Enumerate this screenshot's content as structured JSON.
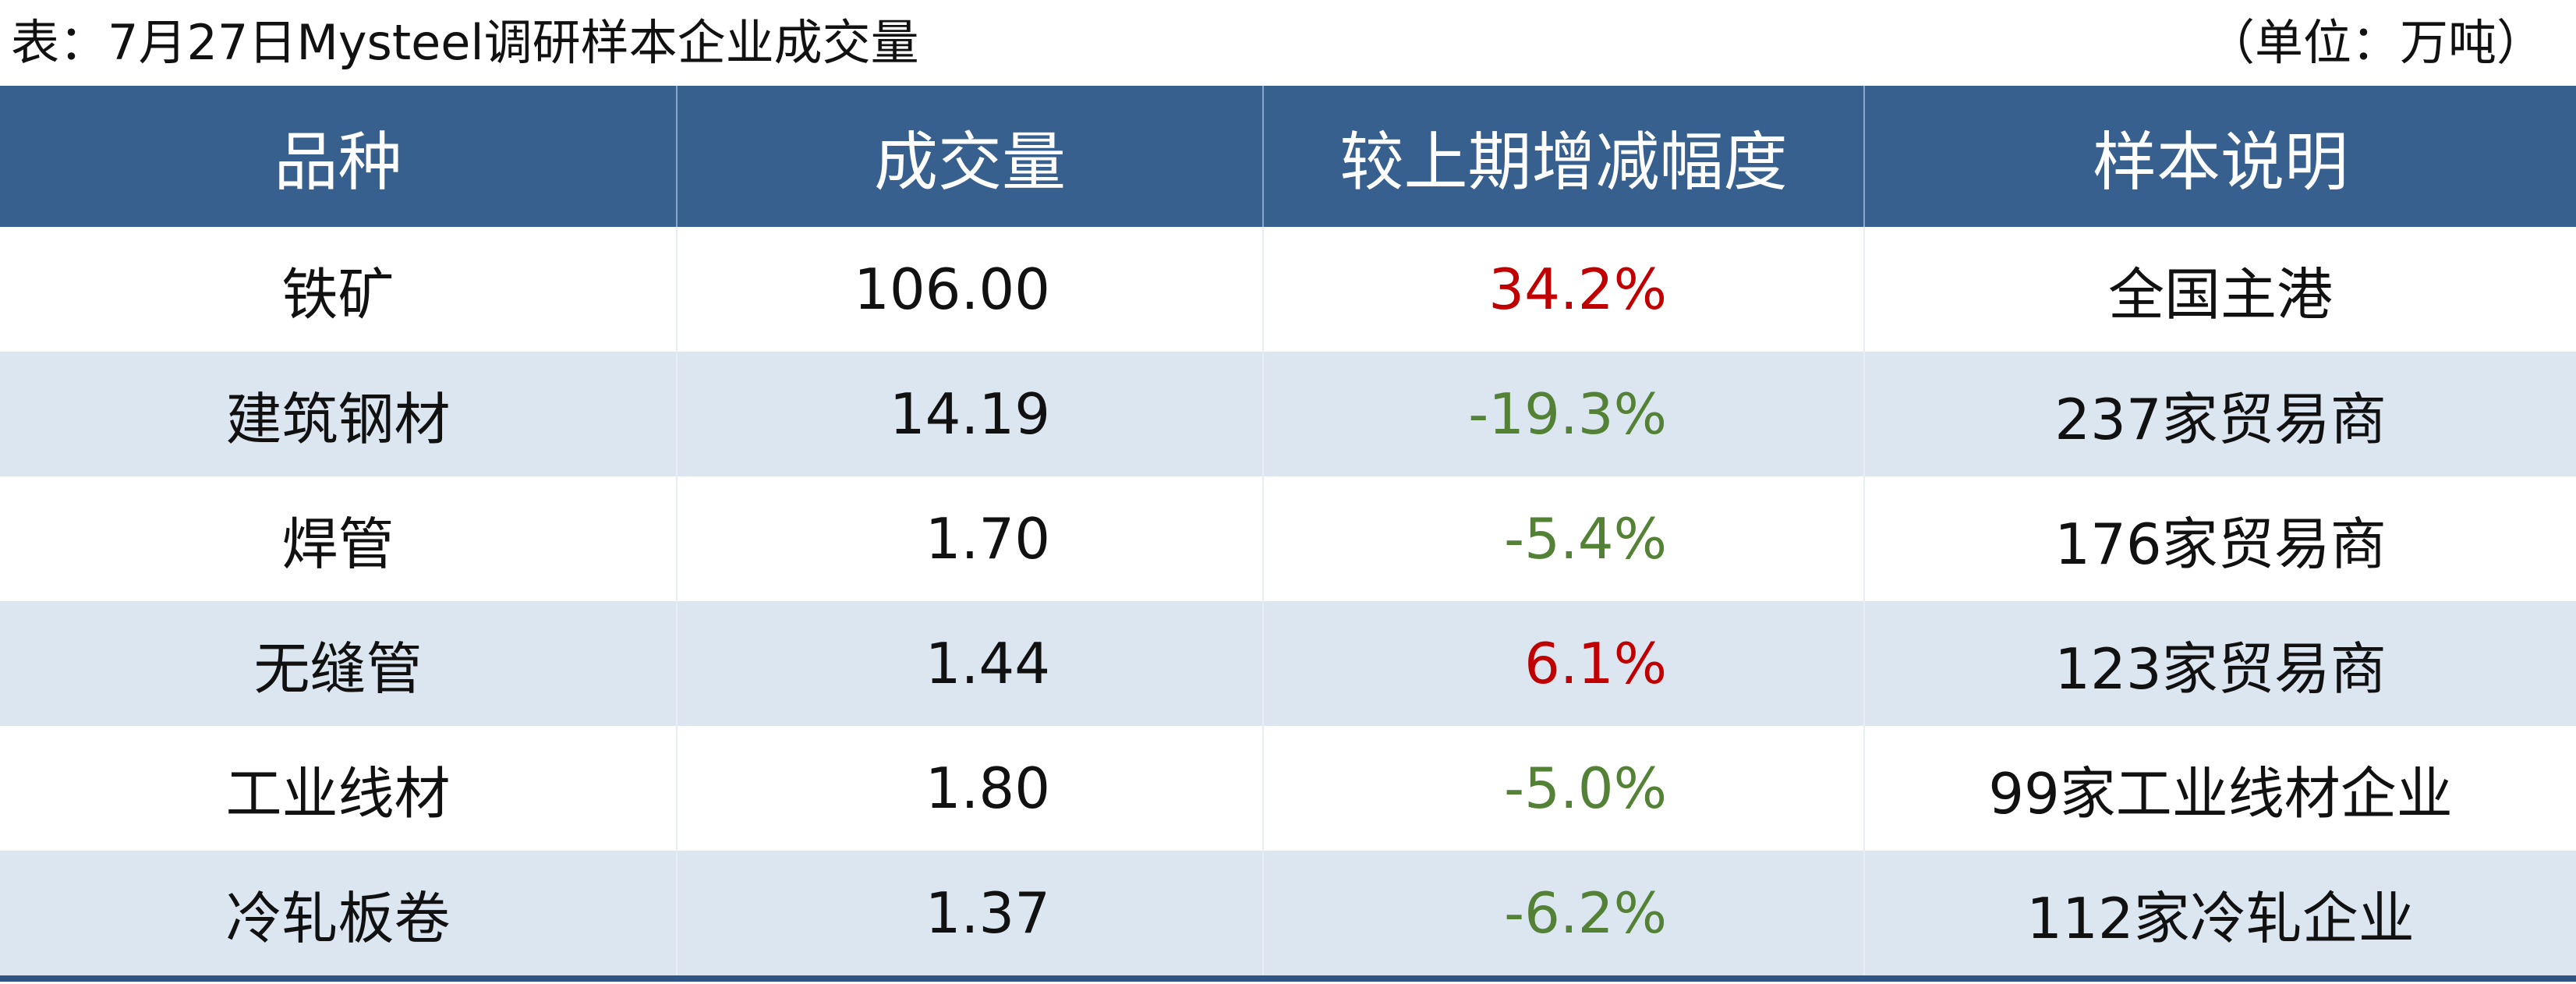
{
  "header": {
    "title": "表：7月27日Mysteel调研样本企业成交量",
    "unit": "（单位：万吨）"
  },
  "table": {
    "columns": [
      "品种",
      "成交量",
      "较上期增减幅度",
      "样本说明"
    ],
    "rows": [
      [
        "铁矿",
        "106.00",
        "34.2%",
        "全国主港"
      ],
      [
        "建筑钢材",
        "14.19",
        "-19.3%",
        "237家贸易商"
      ],
      [
        "焊管",
        "1.70",
        "-5.4%",
        "176家贸易商"
      ],
      [
        "无缝管",
        "1.44",
        "6.1%",
        "123家贸易商"
      ],
      [
        "工业线材",
        "1.80",
        "-5.0%",
        "99家工业线材企业"
      ],
      [
        "冷轧板卷",
        "1.37",
        "-6.2%",
        "112家冷轧企业"
      ]
    ]
  }
}
